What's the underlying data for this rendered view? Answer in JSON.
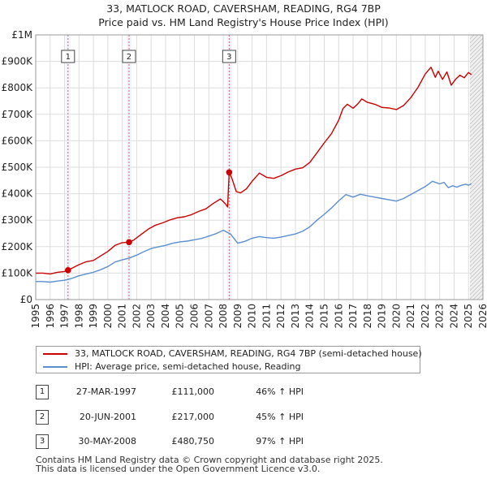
{
  "chart_data": {
    "type": "line",
    "title": "33, MATLOCK ROAD, CAVERSHAM, READING, RG4 7BP",
    "subtitle": "Price paid vs. HM Land Registry's House Price Index (HPI)",
    "xlabel": "",
    "ylabel": "",
    "xlim": [
      1995,
      2026
    ],
    "ylim": [
      0,
      1000000
    ],
    "grid": true,
    "x_ticks": [
      1995,
      1996,
      1997,
      1998,
      1999,
      2000,
      2001,
      2002,
      2003,
      2004,
      2005,
      2006,
      2007,
      2008,
      2009,
      2010,
      2011,
      2012,
      2013,
      2014,
      2015,
      2016,
      2017,
      2018,
      2019,
      2020,
      2021,
      2022,
      2023,
      2024,
      2025,
      2026
    ],
    "y_ticks": [
      {
        "value": 0,
        "label": "£0"
      },
      {
        "value": 100000,
        "label": "£100K"
      },
      {
        "value": 200000,
        "label": "£200K"
      },
      {
        "value": 300000,
        "label": "£300K"
      },
      {
        "value": 400000,
        "label": "£400K"
      },
      {
        "value": 500000,
        "label": "£500K"
      },
      {
        "value": 600000,
        "label": "£600K"
      },
      {
        "value": 700000,
        "label": "£700K"
      },
      {
        "value": 800000,
        "label": "£800K"
      },
      {
        "value": 900000,
        "label": "£900K"
      },
      {
        "value": 1000000,
        "label": "£1M"
      }
    ],
    "series": [
      {
        "name": "33, MATLOCK ROAD, CAVERSHAM, READING, RG4 7BP (semi-detached house)",
        "color": "#cc0000",
        "x": [
          1995.0,
          1995.5,
          1996.0,
          1996.5,
          1997.0,
          1997.24,
          1997.5,
          1998.0,
          1998.5,
          1999.0,
          1999.5,
          2000.0,
          2000.5,
          2001.0,
          2001.47,
          2001.8,
          2002.3,
          2002.8,
          2003.3,
          2003.8,
          2004.3,
          2004.8,
          2005.3,
          2005.8,
          2006.3,
          2006.8,
          2007.3,
          2007.8,
          2008.0,
          2008.2,
          2008.3,
          2008.41,
          2008.6,
          2008.9,
          2009.2,
          2009.6,
          2010.0,
          2010.5,
          2011.0,
          2011.5,
          2012.0,
          2012.5,
          2013.0,
          2013.5,
          2014.0,
          2014.5,
          2015.0,
          2015.5,
          2016.0,
          2016.3,
          2016.6,
          2017.0,
          2017.3,
          2017.6,
          2018.0,
          2018.5,
          2019.0,
          2019.5,
          2020.0,
          2020.5,
          2021.0,
          2021.5,
          2022.0,
          2022.4,
          2022.7,
          2022.9,
          2023.2,
          2023.5,
          2023.8,
          2024.1,
          2024.4,
          2024.7,
          2025.0,
          2025.2
        ],
        "values": [
          100000,
          100000,
          97000,
          103000,
          106000,
          111000,
          118000,
          132000,
          143000,
          148000,
          165000,
          182000,
          205000,
          215000,
          217000,
          225000,
          246000,
          266000,
          281000,
          290000,
          301000,
          309000,
          313000,
          321000,
          333000,
          343000,
          363000,
          380000,
          370000,
          358000,
          350000,
          480750,
          458000,
          408000,
          403000,
          418000,
          447000,
          478000,
          462000,
          458000,
          468000,
          482000,
          493000,
          498000,
          518000,
          555000,
          592000,
          627000,
          678000,
          722000,
          738000,
          723000,
          738000,
          758000,
          745000,
          738000,
          726000,
          724000,
          718000,
          733000,
          763000,
          802000,
          852000,
          878000,
          840000,
          863000,
          832000,
          860000,
          810000,
          832000,
          848000,
          838000,
          858000,
          850000
        ]
      },
      {
        "name": "HPI: Average price, semi-detached house, Reading",
        "color": "#5b8fd0",
        "x": [
          1995.0,
          1995.5,
          1996.0,
          1996.5,
          1997.0,
          1997.5,
          1998.0,
          1998.5,
          1999.0,
          1999.5,
          2000.0,
          2000.5,
          2001.0,
          2001.5,
          2002.0,
          2002.5,
          2003.0,
          2003.5,
          2004.0,
          2004.5,
          2005.0,
          2005.5,
          2006.0,
          2006.5,
          2007.0,
          2007.5,
          2008.0,
          2008.5,
          2009.0,
          2009.5,
          2010.0,
          2010.5,
          2011.0,
          2011.5,
          2012.0,
          2012.5,
          2013.0,
          2013.5,
          2014.0,
          2014.5,
          2015.0,
          2015.5,
          2016.0,
          2016.5,
          2017.0,
          2017.5,
          2018.0,
          2018.5,
          2019.0,
          2019.5,
          2020.0,
          2020.5,
          2021.0,
          2021.5,
          2022.0,
          2022.5,
          2023.0,
          2023.3,
          2023.6,
          2023.9,
          2024.2,
          2024.5,
          2024.8,
          2025.0,
          2025.2
        ],
        "values": [
          68000,
          68000,
          66000,
          70000,
          73000,
          80000,
          90000,
          97000,
          103000,
          113000,
          125000,
          142000,
          150000,
          157000,
          168000,
          181000,
          193000,
          199000,
          205000,
          213000,
          218000,
          221000,
          226000,
          231000,
          240000,
          249000,
          262000,
          248000,
          213000,
          220000,
          232000,
          238000,
          234000,
          232000,
          236000,
          242000,
          248000,
          258000,
          275000,
          300000,
          322000,
          346000,
          373000,
          397000,
          387000,
          398000,
          392000,
          387000,
          382000,
          377000,
          372000,
          382000,
          397000,
          412000,
          427000,
          447000,
          437000,
          443000,
          423000,
          430000,
          425000,
          432000,
          436000,
          432000,
          438000
        ]
      }
    ],
    "sales": [
      {
        "label": "1",
        "x": 1997.24,
        "value": 111000
      },
      {
        "label": "2",
        "x": 2001.47,
        "value": 217000
      },
      {
        "label": "3",
        "x": 2008.41,
        "value": 480750
      }
    ],
    "forecast_from": 2025.1
  },
  "legend": {
    "property": "33, MATLOCK ROAD, CAVERSHAM, READING, RG4 7BP (semi-detached house)",
    "hpi": "HPI: Average price, semi-detached house, Reading"
  },
  "transactions": [
    {
      "num": "1",
      "date": "27-MAR-1997",
      "price": "£111,000",
      "hpi": "46% ↑ HPI"
    },
    {
      "num": "2",
      "date": "20-JUN-2001",
      "price": "£217,000",
      "hpi": "45% ↑ HPI"
    },
    {
      "num": "3",
      "date": "30-MAY-2008",
      "price": "£480,750",
      "hpi": "97% ↑ HPI"
    }
  ],
  "footer": {
    "line1": "Contains HM Land Registry data © Crown copyright and database right 2025.",
    "line2": "This data is licensed under the Open Government Licence v3.0."
  }
}
